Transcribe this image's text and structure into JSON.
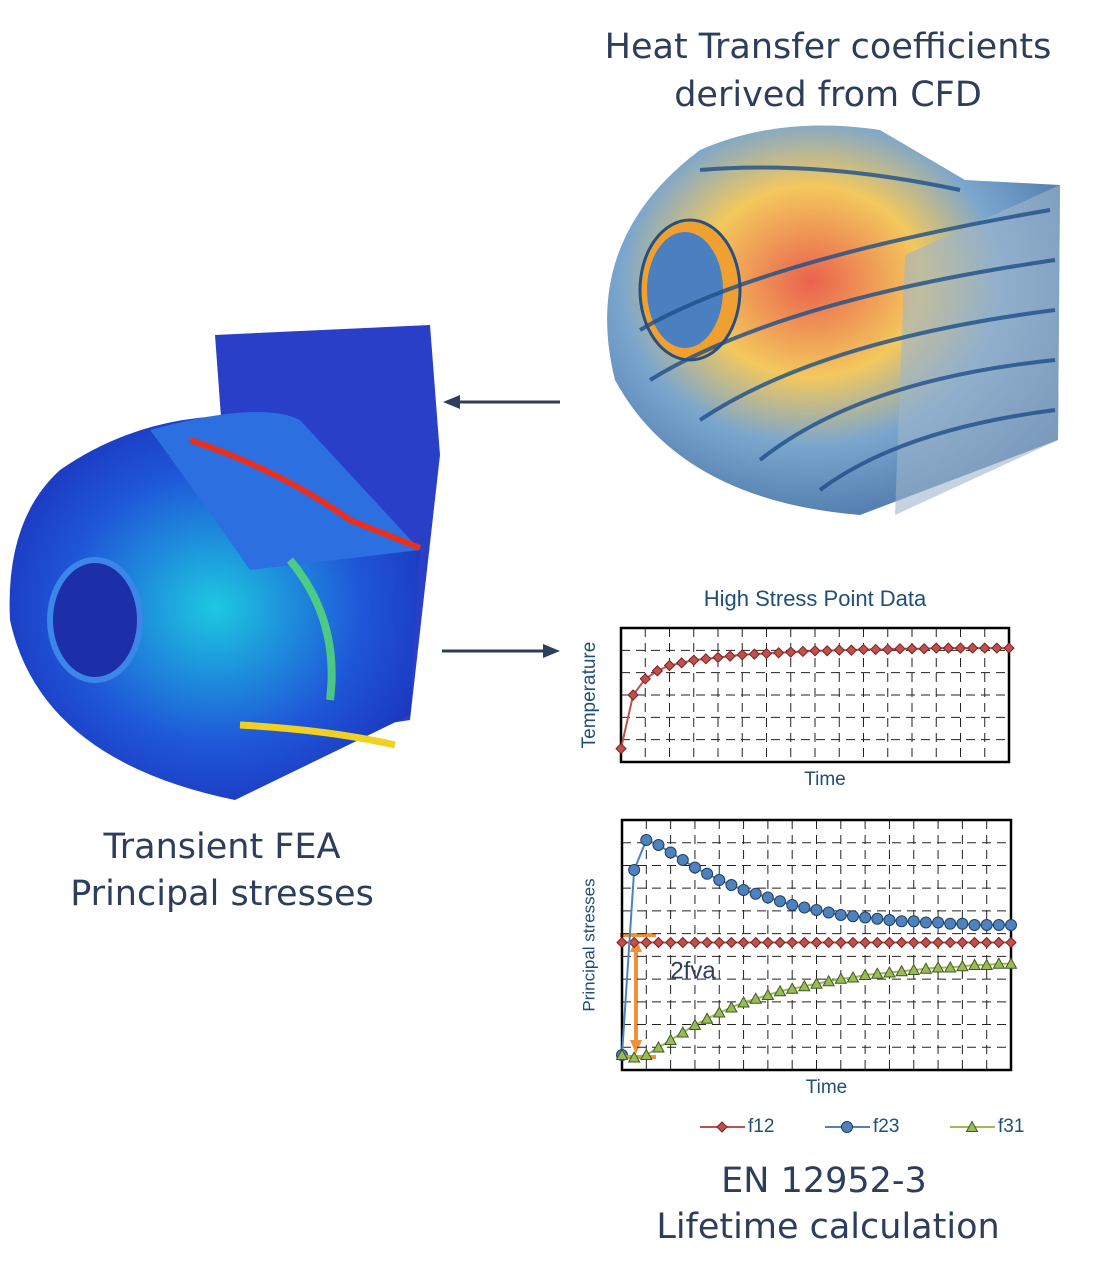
{
  "captions": {
    "cfd": [
      "Heat Transfer coefficients",
      "derived from CFD"
    ],
    "fea": [
      "Transient FEA",
      "Principal stresses"
    ],
    "lifetime": [
      "EN 12952-3",
      "Lifetime calculation"
    ]
  },
  "charts": [
    {
      "type": "line",
      "title": "High Stress Point Data",
      "x_label": "Time",
      "y_label": "Temperature",
      "xlim": [
        0,
        32
      ],
      "ylim": [
        0,
        100
      ],
      "grid": true,
      "x": [
        0,
        1,
        2,
        3,
        4,
        5,
        6,
        7,
        8,
        9,
        10,
        11,
        12,
        13,
        14,
        15,
        16,
        17,
        18,
        19,
        20,
        21,
        22,
        23,
        24,
        25,
        26,
        27,
        28,
        29,
        30,
        31,
        32
      ],
      "series": [
        {
          "color": "#c0504d",
          "marker": "diamond",
          "values": [
            10,
            50,
            62,
            68,
            72,
            74,
            76,
            77,
            78,
            79,
            80,
            80.5,
            81,
            81.5,
            82,
            82.5,
            83,
            83,
            83.5,
            83.5,
            84,
            84,
            84,
            84.5,
            84.5,
            84.5,
            85,
            85,
            85,
            85,
            85,
            85,
            85
          ]
        }
      ]
    },
    {
      "type": "line",
      "x_label": "Time",
      "y_label": "Principal stresses",
      "annotation": "2fva",
      "xlim": [
        0,
        32
      ],
      "ylim": [
        0,
        100
      ],
      "grid": true,
      "x": [
        0,
        1,
        2,
        3,
        4,
        5,
        6,
        7,
        8,
        9,
        10,
        11,
        12,
        13,
        14,
        15,
        16,
        17,
        18,
        19,
        20,
        21,
        22,
        23,
        24,
        25,
        26,
        27,
        28,
        29,
        30,
        31,
        32
      ],
      "series": [
        {
          "name": "f12",
          "color": "#c0504d",
          "marker": "diamond",
          "values": [
            51,
            51,
            51,
            51,
            51,
            51,
            51,
            51,
            51,
            51,
            51,
            51,
            51,
            51,
            51,
            51,
            51,
            51,
            51,
            51,
            51,
            51,
            51,
            51,
            51,
            51,
            51,
            51,
            51,
            51,
            51,
            51,
            51
          ]
        },
        {
          "name": "f23",
          "color": "#4f81bd",
          "marker": "circle",
          "values": [
            6,
            80,
            92,
            90,
            87,
            84,
            81,
            78.5,
            76,
            74,
            72,
            70.5,
            69,
            67.5,
            66,
            65,
            64,
            63,
            62,
            61.5,
            61,
            60.5,
            60,
            59.5,
            59.5,
            59,
            59,
            58.5,
            58.5,
            58,
            58,
            58,
            58
          ]
        },
        {
          "name": "f31",
          "color": "#9bbb59",
          "marker": "triangle",
          "values": [
            6,
            5,
            6,
            9,
            12,
            15,
            18,
            20.5,
            23,
            25,
            27,
            28.5,
            30,
            31.5,
            32.5,
            33.5,
            34.5,
            35.5,
            36.5,
            37,
            38,
            38.5,
            39,
            39.5,
            40,
            40.5,
            41,
            41,
            41.5,
            42,
            42,
            42.5,
            42.5
          ]
        }
      ]
    }
  ]
}
